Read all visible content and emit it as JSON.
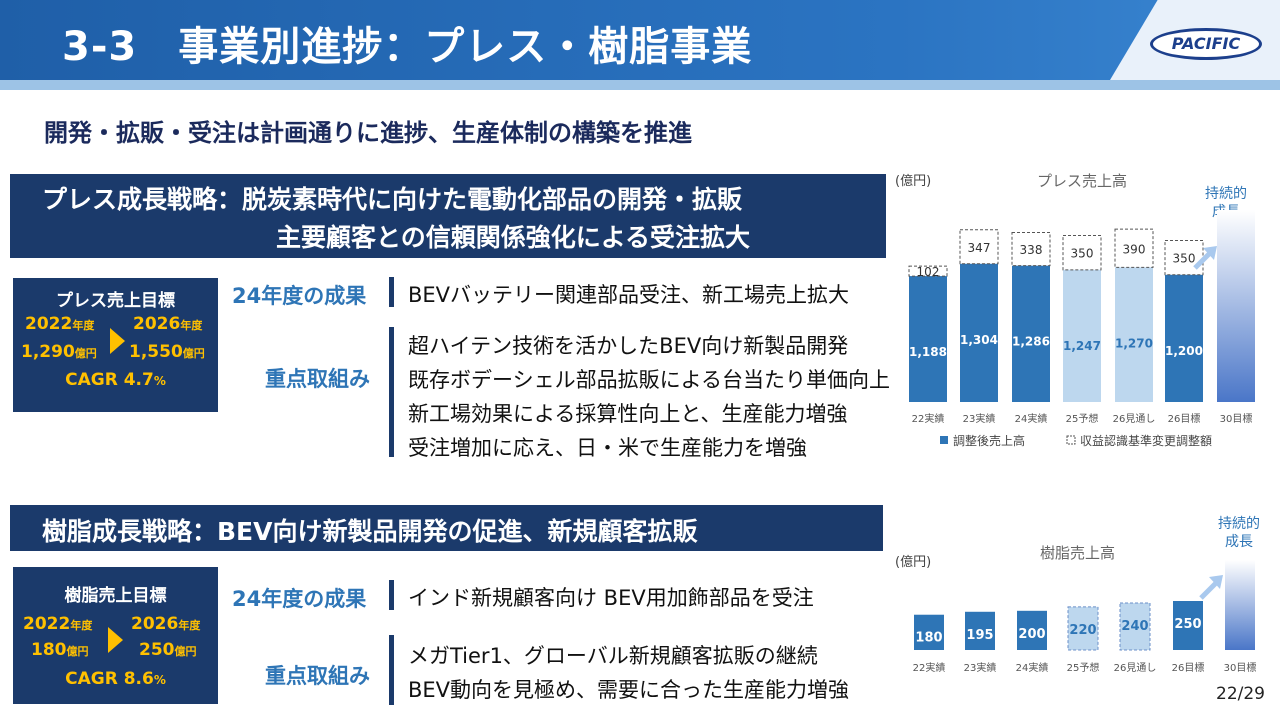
{
  "header": {
    "title": "3-3　事業別進捗：プレス・樹脂事業",
    "logo_text": "PACIFIC"
  },
  "subtitle": "開発・拡販・受注は計画通りに進捗、生産体制の構築を推進",
  "press": {
    "strategy_line1": "プレス成長戦略：脱炭素時代に向けた電動化部品の開発・拡販",
    "strategy_line2": "主要顧客との信頼関係強化による受注拡大",
    "target": {
      "title": "プレス売上目標",
      "year_from": "2022",
      "year_to": "2026",
      "year_unit": "年度",
      "value_from": "1,290",
      "value_to": "1,550",
      "value_unit": "億円",
      "cagr": "CAGR 4.7",
      "cagr_unit": "%"
    },
    "results_label": "24年度の成果",
    "results_text": "BEVバッテリー関連部品受注、新工場売上拡大",
    "focus_label": "重点取組み",
    "focus_items": [
      "超ハイテン技術を活かしたBEV向け新製品開発",
      "既存ボデーシェル部品拡販による台当たり単価向上",
      "新工場効果による採算性向上と、生産能力増強",
      "受注増加に応え、日・米で生産能力を増強"
    ]
  },
  "resin": {
    "strategy_line1": "樹脂成長戦略：BEV向け新製品開発の促進、新規顧客拡販",
    "target": {
      "title": "樹脂売上目標",
      "year_from": "2022",
      "year_to": "2026",
      "year_unit": "年度",
      "value_from": "180",
      "value_to": "250",
      "value_unit": "億円",
      "cagr": "CAGR 8.6",
      "cagr_unit": "%"
    },
    "results_label": "24年度の成果",
    "results_text": "インド新規顧客向け BEV用加飾部品を受注",
    "focus_label": "重点取組み",
    "focus_items": [
      "メガTier1、グローバル新規顧客拡販の継続",
      "BEV動向を見極め、需要に合った生産能力増強"
    ]
  },
  "chart_data": [
    {
      "type": "bar",
      "title": "プレス売上高",
      "unit_label": "(億円)",
      "categories": [
        "22実績",
        "23実績",
        "24実績",
        "25予想",
        "26見通し",
        "26目標",
        "30目標"
      ],
      "series": [
        {
          "name": "調整後売上高",
          "values": [
            1188,
            1304,
            1286,
            1247,
            1270,
            1200,
            null
          ],
          "labels": [
            "1,188",
            "1,304",
            "1,286",
            "1,247",
            "1,270",
            "1,200",
            ""
          ]
        },
        {
          "name": "収益認識基準変更調整額",
          "values": [
            102,
            347,
            338,
            350,
            390,
            350,
            null
          ]
        }
      ],
      "growth_label": "持続的\n成長",
      "colors": {
        "actual": "#2e75b6",
        "forecast": "#bdd7ee",
        "adjustment_border": "#555555",
        "forecast_label": "#2e75b6"
      },
      "legend_position": "bottom",
      "grid": false
    },
    {
      "type": "bar",
      "title": "樹脂売上高",
      "unit_label": "(億円)",
      "categories": [
        "22実績",
        "23実績",
        "24実績",
        "25予想",
        "26見通し",
        "26目標",
        "30目標"
      ],
      "series": [
        {
          "values": [
            180,
            195,
            200,
            220,
            240,
            250,
            null
          ]
        }
      ],
      "growth_label": "持続的\n成長",
      "colors": {
        "actual": "#2e75b6",
        "forecast": "#bdd7ee",
        "forecast_label": "#2e75b6"
      },
      "grid": false
    }
  ],
  "page": "22/29"
}
